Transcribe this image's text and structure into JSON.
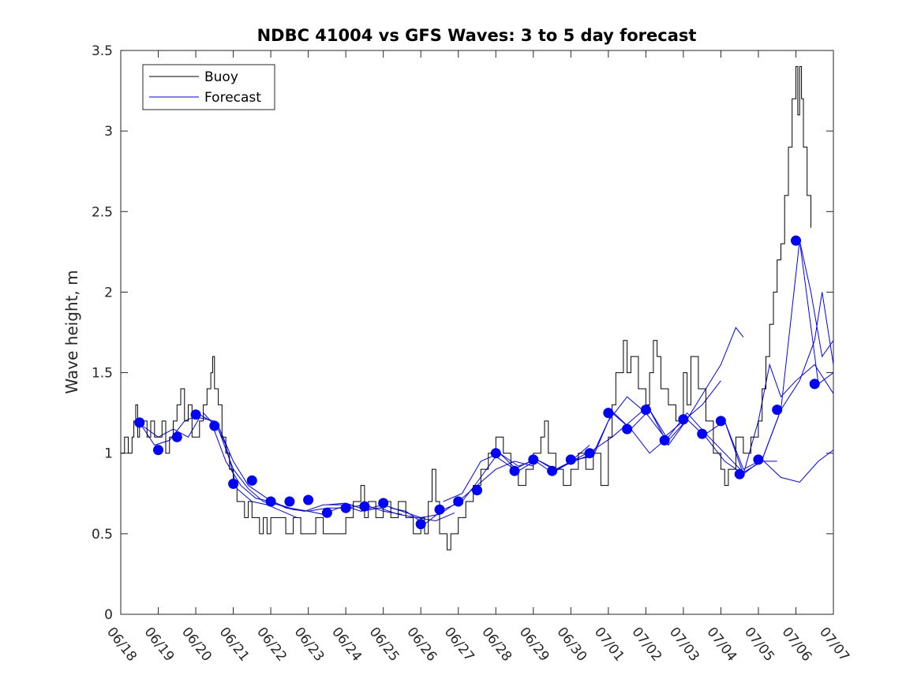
{
  "chart_data": {
    "type": "line",
    "title": "NDBC 41004 vs GFS Waves: 3 to 5 day forecast",
    "xlabel": "",
    "ylabel": "Wave height, m",
    "xlim": [
      "06/18",
      "07/07"
    ],
    "ylim": [
      0,
      3.5
    ],
    "x_ticks": [
      "06/18",
      "06/19",
      "06/20",
      "06/21",
      "06/22",
      "06/23",
      "06/24",
      "06/25",
      "06/26",
      "06/27",
      "06/28",
      "06/29",
      "06/30",
      "07/01",
      "07/02",
      "07/03",
      "07/04",
      "07/05",
      "07/06",
      "07/07"
    ],
    "y_ticks": [
      "0",
      "0.5",
      "1",
      "1.5",
      "2",
      "2.5",
      "3",
      "3.5"
    ],
    "grid": false,
    "legend": {
      "position": "top-left",
      "entries": [
        "Buoy",
        "Forecast"
      ]
    },
    "colors": {
      "buoy": "#000000",
      "forecast": "#0000ff",
      "markers": "#0000ff"
    },
    "buoy": {
      "name": "Buoy",
      "points": [
        [
          0,
          1.0
        ],
        [
          0.1,
          1.1
        ],
        [
          0.2,
          1.0
        ],
        [
          0.3,
          1.1
        ],
        [
          0.35,
          1.2
        ],
        [
          0.4,
          1.3
        ],
        [
          0.45,
          1.1
        ],
        [
          0.5,
          1.2
        ],
        [
          0.6,
          1.2
        ],
        [
          0.7,
          1.1
        ],
        [
          0.8,
          1.2
        ],
        [
          0.9,
          1.1
        ],
        [
          1.0,
          1.1
        ],
        [
          1.1,
          1.2
        ],
        [
          1.2,
          1.0
        ],
        [
          1.3,
          1.1
        ],
        [
          1.4,
          1.2
        ],
        [
          1.5,
          1.3
        ],
        [
          1.6,
          1.4
        ],
        [
          1.7,
          1.2
        ],
        [
          1.8,
          1.3
        ],
        [
          1.9,
          1.1
        ],
        [
          2.0,
          1.1
        ],
        [
          2.1,
          1.2
        ],
        [
          2.2,
          1.3
        ],
        [
          2.3,
          1.4
        ],
        [
          2.4,
          1.5
        ],
        [
          2.45,
          1.6
        ],
        [
          2.5,
          1.4
        ],
        [
          2.6,
          1.3
        ],
        [
          2.7,
          1.1
        ],
        [
          2.8,
          1.0
        ],
        [
          2.9,
          0.9
        ],
        [
          3.0,
          0.8
        ],
        [
          3.1,
          0.7
        ],
        [
          3.2,
          0.7
        ],
        [
          3.3,
          0.6
        ],
        [
          3.4,
          0.7
        ],
        [
          3.5,
          0.6
        ],
        [
          3.6,
          0.6
        ],
        [
          3.7,
          0.5
        ],
        [
          3.8,
          0.6
        ],
        [
          3.9,
          0.5
        ],
        [
          4.0,
          0.6
        ],
        [
          4.2,
          0.6
        ],
        [
          4.4,
          0.5
        ],
        [
          4.6,
          0.6
        ],
        [
          4.8,
          0.5
        ],
        [
          5.0,
          0.5
        ],
        [
          5.2,
          0.6
        ],
        [
          5.4,
          0.5
        ],
        [
          5.6,
          0.5
        ],
        [
          5.8,
          0.5
        ],
        [
          6.0,
          0.6
        ],
        [
          6.2,
          0.7
        ],
        [
          6.4,
          0.8
        ],
        [
          6.5,
          0.6
        ],
        [
          6.6,
          0.7
        ],
        [
          6.8,
          0.6
        ],
        [
          7.0,
          0.7
        ],
        [
          7.2,
          0.6
        ],
        [
          7.4,
          0.7
        ],
        [
          7.6,
          0.6
        ],
        [
          7.8,
          0.5
        ],
        [
          8.0,
          0.6
        ],
        [
          8.1,
          0.5
        ],
        [
          8.2,
          0.7
        ],
        [
          8.3,
          0.9
        ],
        [
          8.4,
          0.7
        ],
        [
          8.5,
          0.5
        ],
        [
          8.6,
          0.5
        ],
        [
          8.7,
          0.4
        ],
        [
          8.8,
          0.5
        ],
        [
          9.0,
          0.6
        ],
        [
          9.2,
          0.7
        ],
        [
          9.4,
          0.8
        ],
        [
          9.6,
          0.9
        ],
        [
          9.8,
          1.0
        ],
        [
          10.0,
          1.1
        ],
        [
          10.2,
          1.0
        ],
        [
          10.4,
          0.9
        ],
        [
          10.6,
          0.8
        ],
        [
          10.8,
          0.9
        ],
        [
          11.0,
          1.0
        ],
        [
          11.2,
          1.1
        ],
        [
          11.3,
          1.2
        ],
        [
          11.4,
          1.0
        ],
        [
          11.6,
          0.9
        ],
        [
          11.8,
          0.8
        ],
        [
          12.0,
          0.9
        ],
        [
          12.2,
          1.0
        ],
        [
          12.4,
          0.9
        ],
        [
          12.6,
          1.0
        ],
        [
          12.8,
          0.8
        ],
        [
          13.0,
          1.1
        ],
        [
          13.1,
          1.3
        ],
        [
          13.2,
          1.5
        ],
        [
          13.4,
          1.7
        ],
        [
          13.5,
          1.5
        ],
        [
          13.6,
          1.6
        ],
        [
          13.8,
          1.4
        ],
        [
          14.0,
          1.3
        ],
        [
          14.1,
          1.5
        ],
        [
          14.2,
          1.7
        ],
        [
          14.3,
          1.6
        ],
        [
          14.4,
          1.4
        ],
        [
          14.6,
          1.3
        ],
        [
          14.8,
          1.2
        ],
        [
          15.0,
          1.5
        ],
        [
          15.1,
          1.3
        ],
        [
          15.2,
          1.6
        ],
        [
          15.4,
          1.4
        ],
        [
          15.6,
          1.2
        ],
        [
          15.8,
          1.0
        ],
        [
          16.0,
          0.9
        ],
        [
          16.1,
          0.8
        ],
        [
          16.2,
          0.9
        ],
        [
          16.4,
          1.1
        ],
        [
          16.6,
          1.0
        ],
        [
          16.8,
          1.1
        ],
        [
          17.0,
          1.2
        ],
        [
          17.1,
          1.4
        ],
        [
          17.2,
          1.6
        ],
        [
          17.3,
          1.8
        ],
        [
          17.4,
          2.0
        ],
        [
          17.5,
          2.2
        ],
        [
          17.6,
          2.3
        ],
        [
          17.7,
          2.6
        ],
        [
          17.8,
          2.9
        ],
        [
          17.9,
          3.2
        ],
        [
          18.0,
          3.4
        ],
        [
          18.05,
          3.1
        ],
        [
          18.1,
          3.4
        ],
        [
          18.15,
          3.2
        ],
        [
          18.2,
          2.9
        ],
        [
          18.3,
          2.6
        ],
        [
          18.4,
          2.4
        ]
      ]
    },
    "forecast_runs": [
      [
        [
          0.4,
          1.2
        ],
        [
          0.7,
          1.15
        ],
        [
          1.0,
          1.1
        ],
        [
          1.4,
          1.15
        ],
        [
          1.8,
          1.1
        ],
        [
          2.1,
          1.22
        ],
        [
          2.5,
          1.2
        ],
        [
          2.8,
          1.05
        ],
        [
          3.1,
          0.78
        ],
        [
          3.5,
          0.7
        ],
        [
          3.9,
          0.68
        ],
        [
          4.3,
          0.64
        ],
        [
          4.7,
          0.6
        ]
      ],
      [
        [
          0.5,
          1.19
        ],
        [
          0.9,
          1.05
        ],
        [
          1.3,
          1.08
        ],
        [
          1.7,
          1.2
        ],
        [
          2.1,
          1.24
        ],
        [
          2.4,
          1.2
        ],
        [
          2.8,
          0.95
        ],
        [
          3.2,
          0.8
        ],
        [
          3.6,
          0.72
        ],
        [
          4.0,
          0.7
        ],
        [
          4.5,
          0.66
        ],
        [
          5.0,
          0.64
        ],
        [
          5.4,
          0.62
        ],
        [
          5.8,
          0.66
        ],
        [
          6.2,
          0.68
        ]
      ],
      [
        [
          2.2,
          1.25
        ],
        [
          2.6,
          1.15
        ],
        [
          3.0,
          0.9
        ],
        [
          3.4,
          0.78
        ],
        [
          3.8,
          0.7
        ],
        [
          4.2,
          0.68
        ],
        [
          4.6,
          0.65
        ],
        [
          5.0,
          0.64
        ],
        [
          5.5,
          0.66
        ],
        [
          6.0,
          0.66
        ],
        [
          6.5,
          0.68
        ],
        [
          7.0,
          0.64
        ],
        [
          7.5,
          0.62
        ]
      ],
      [
        [
          2.6,
          1.17
        ],
        [
          3.0,
          0.95
        ],
        [
          3.4,
          0.8
        ],
        [
          3.9,
          0.72
        ],
        [
          4.4,
          0.66
        ],
        [
          4.9,
          0.64
        ],
        [
          5.4,
          0.68
        ],
        [
          5.9,
          0.68
        ],
        [
          6.4,
          0.64
        ],
        [
          6.9,
          0.66
        ],
        [
          7.4,
          0.62
        ],
        [
          7.9,
          0.6
        ],
        [
          8.4,
          0.58
        ],
        [
          8.9,
          0.63
        ]
      ],
      [
        [
          5.5,
          0.68
        ],
        [
          6.0,
          0.69
        ],
        [
          6.5,
          0.65
        ],
        [
          7.0,
          0.68
        ],
        [
          7.5,
          0.64
        ],
        [
          8.0,
          0.6
        ],
        [
          8.5,
          0.62
        ],
        [
          9.0,
          0.7
        ],
        [
          9.5,
          0.8
        ],
        [
          10.0,
          0.9
        ],
        [
          10.5,
          0.95
        ],
        [
          11.0,
          0.92
        ]
      ],
      [
        [
          7.2,
          0.66
        ],
        [
          7.6,
          0.64
        ],
        [
          8.1,
          0.56
        ],
        [
          8.6,
          0.65
        ],
        [
          9.1,
          0.7
        ],
        [
          9.5,
          0.82
        ],
        [
          10.0,
          0.98
        ],
        [
          10.5,
          0.9
        ],
        [
          11.0,
          0.96
        ],
        [
          11.5,
          0.88
        ],
        [
          12.0,
          0.95
        ],
        [
          12.5,
          1.05
        ]
      ],
      [
        [
          8.6,
          0.7
        ],
        [
          9.1,
          0.75
        ],
        [
          9.6,
          0.95
        ],
        [
          10.1,
          1.0
        ],
        [
          10.6,
          0.89
        ],
        [
          11.1,
          0.96
        ],
        [
          11.6,
          0.9
        ],
        [
          12.1,
          0.96
        ],
        [
          12.6,
          1.02
        ],
        [
          13.1,
          1.1
        ],
        [
          13.6,
          1.2
        ],
        [
          14.1,
          1.3
        ]
      ],
      [
        [
          10.1,
          1.0
        ],
        [
          10.6,
          0.92
        ],
        [
          11.1,
          0.96
        ],
        [
          11.6,
          0.89
        ],
        [
          12.1,
          0.96
        ],
        [
          12.6,
          0.98
        ],
        [
          13.0,
          1.2
        ],
        [
          13.5,
          1.35
        ],
        [
          14.0,
          1.25
        ],
        [
          14.5,
          1.1
        ],
        [
          15.0,
          1.2
        ],
        [
          15.5,
          1.3
        ],
        [
          16.0,
          1.45
        ]
      ],
      [
        [
          11.6,
          0.9
        ],
        [
          12.1,
          0.95
        ],
        [
          12.6,
          1.0
        ],
        [
          13.1,
          1.25
        ],
        [
          13.6,
          1.15
        ],
        [
          14.1,
          1.27
        ],
        [
          14.6,
          1.08
        ],
        [
          15.1,
          1.21
        ],
        [
          15.6,
          1.4
        ],
        [
          16.0,
          1.55
        ],
        [
          16.4,
          1.78
        ],
        [
          16.6,
          1.72
        ]
      ],
      [
        [
          13.1,
          1.26
        ],
        [
          13.6,
          1.15
        ],
        [
          14.1,
          1.0
        ],
        [
          14.6,
          1.1
        ],
        [
          15.1,
          1.25
        ],
        [
          15.6,
          1.12
        ],
        [
          16.1,
          1.0
        ],
        [
          16.6,
          0.88
        ],
        [
          17.1,
          0.95
        ],
        [
          17.5,
          0.95
        ]
      ],
      [
        [
          14.1,
          1.27
        ],
        [
          14.6,
          1.05
        ],
        [
          15.1,
          1.21
        ],
        [
          15.6,
          1.1
        ],
        [
          16.1,
          0.95
        ],
        [
          16.6,
          0.87
        ],
        [
          17.1,
          0.96
        ],
        [
          17.6,
          0.85
        ],
        [
          18.1,
          0.82
        ],
        [
          18.6,
          0.95
        ],
        [
          19.0,
          1.02
        ]
      ],
      [
        [
          15.6,
          1.12
        ],
        [
          16.1,
          1.2
        ],
        [
          16.6,
          0.87
        ],
        [
          17.0,
          1.2
        ],
        [
          17.3,
          1.55
        ],
        [
          17.6,
          1.35
        ],
        [
          18.0,
          1.45
        ],
        [
          18.5,
          1.55
        ],
        [
          19.0,
          1.37
        ]
      ],
      [
        [
          16.1,
          1.2
        ],
        [
          16.6,
          0.9
        ],
        [
          17.1,
          0.96
        ],
        [
          17.6,
          1.27
        ],
        [
          18.1,
          2.32
        ],
        [
          18.4,
          2.0
        ],
        [
          18.7,
          1.6
        ],
        [
          19.0,
          1.7
        ]
      ],
      [
        [
          17.1,
          0.96
        ],
        [
          17.6,
          1.27
        ],
        [
          18.1,
          1.45
        ],
        [
          18.5,
          1.7
        ],
        [
          18.7,
          2.0
        ],
        [
          19.0,
          1.55
        ]
      ],
      [
        [
          18.1,
          2.32
        ],
        [
          18.6,
          1.43
        ],
        [
          19.0,
          1.5
        ]
      ]
    ],
    "forecast_markers": [
      [
        0.5,
        1.19
      ],
      [
        1.0,
        1.02
      ],
      [
        1.5,
        1.1
      ],
      [
        2.0,
        1.24
      ],
      [
        2.5,
        1.17
      ],
      [
        3.0,
        0.81
      ],
      [
        3.5,
        0.83
      ],
      [
        4.0,
        0.7
      ],
      [
        4.5,
        0.7
      ],
      [
        5.0,
        0.71
      ],
      [
        5.5,
        0.63
      ],
      [
        6.0,
        0.66
      ],
      [
        6.5,
        0.67
      ],
      [
        7.0,
        0.69
      ],
      [
        8.0,
        0.56
      ],
      [
        8.5,
        0.65
      ],
      [
        9.0,
        0.7
      ],
      [
        9.5,
        0.77
      ],
      [
        10.0,
        1.0
      ],
      [
        10.5,
        0.89
      ],
      [
        11.0,
        0.96
      ],
      [
        11.5,
        0.89
      ],
      [
        12.0,
        0.96
      ],
      [
        12.5,
        1.0
      ],
      [
        13.0,
        1.25
      ],
      [
        13.5,
        1.15
      ],
      [
        14.0,
        1.27
      ],
      [
        14.5,
        1.08
      ],
      [
        15.0,
        1.21
      ],
      [
        15.5,
        1.12
      ],
      [
        16.0,
        1.2
      ],
      [
        16.5,
        0.87
      ],
      [
        17.0,
        0.96
      ],
      [
        17.5,
        1.27
      ],
      [
        18.0,
        2.32
      ],
      [
        18.5,
        1.43
      ]
    ]
  }
}
